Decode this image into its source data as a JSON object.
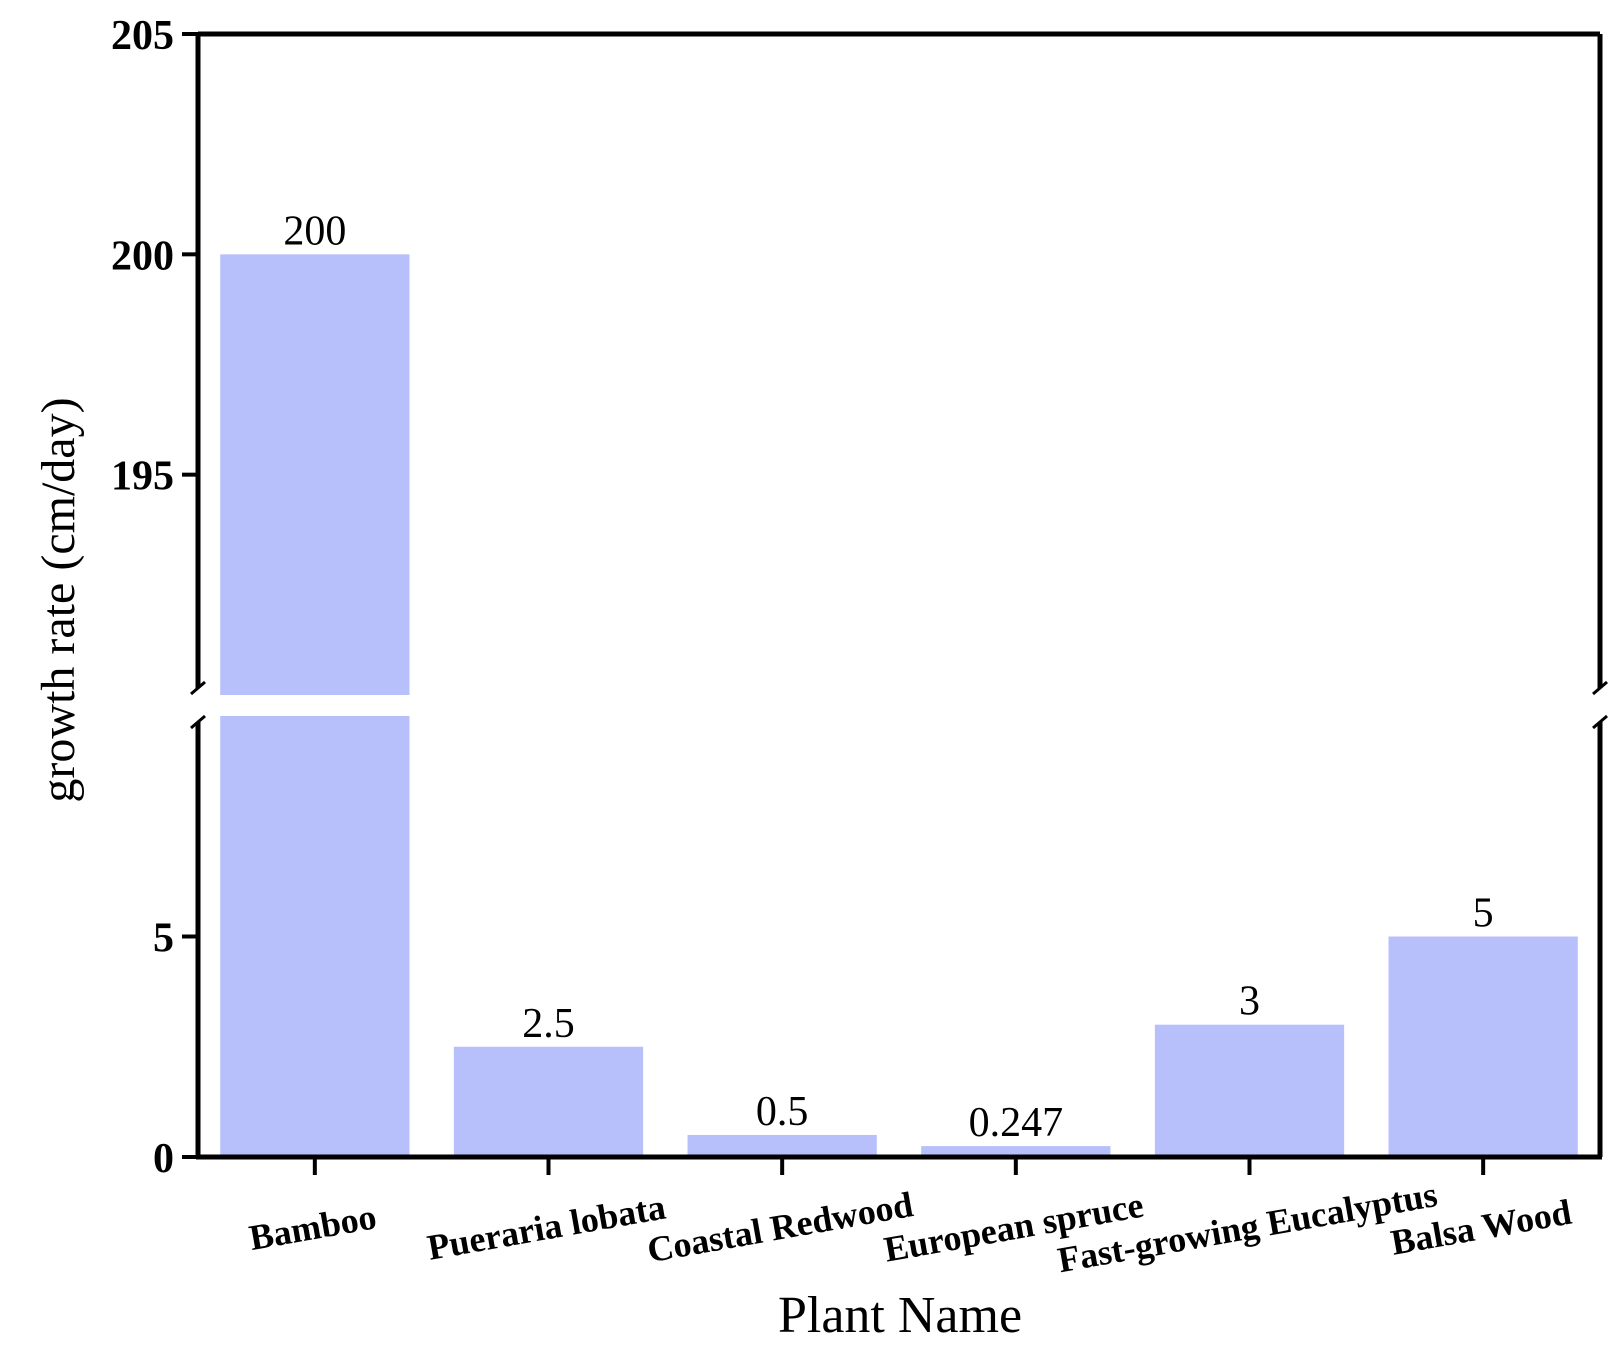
{
  "chart_data": {
    "type": "bar",
    "title": "",
    "xlabel": "Plant Name",
    "ylabel": "growth rate (cm/day)",
    "categories": [
      "Bamboo",
      "Pueraria lobata",
      "Coastal Redwood",
      "European spruce",
      "Fast-growing Eucalyptus",
      "Balsa Wood"
    ],
    "values": [
      200,
      2.5,
      0.5,
      0.247,
      3,
      5
    ],
    "value_labels": [
      "200",
      "2.5",
      "0.5",
      "0.247",
      "3",
      "5"
    ],
    "ylim_lower": [
      0,
      10
    ],
    "ylim_upper": [
      190,
      205
    ],
    "y_break": true,
    "yticks_lower": [
      "0",
      "5"
    ],
    "yticks_upper": [
      "195",
      "200",
      "205"
    ],
    "bar_color": "#b8c0fb",
    "axis_color": "#000000",
    "grid": false,
    "legend": "none"
  }
}
